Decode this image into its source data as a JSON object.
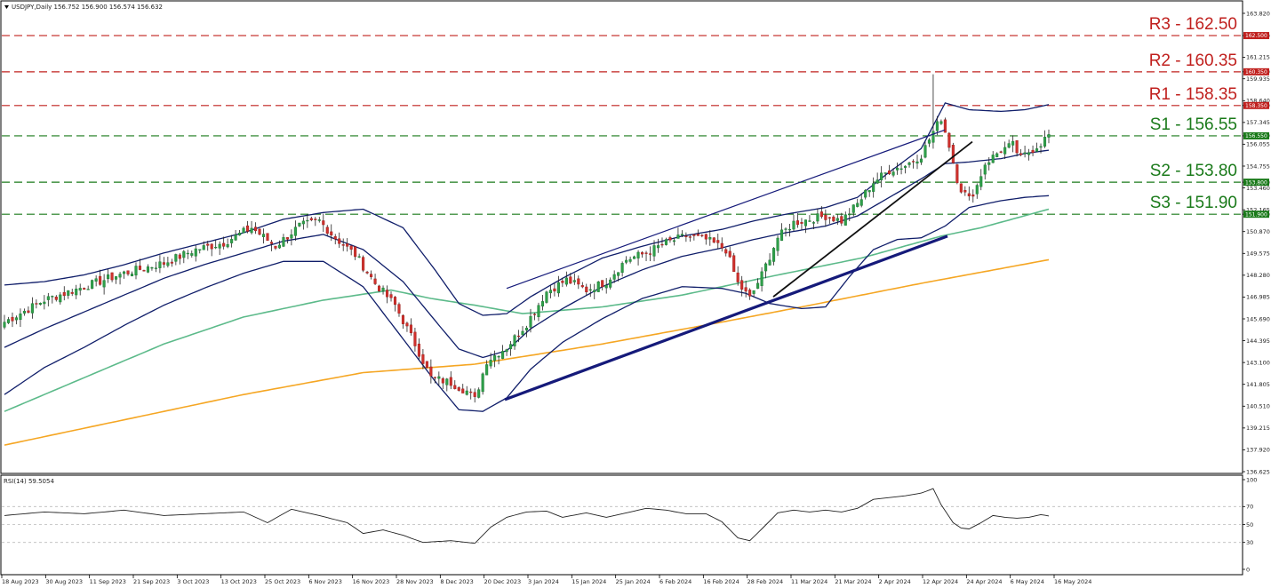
{
  "chart_data": {
    "type": "candlestick",
    "header": "USDJPY,Daily  156.752 156.900 156.574 156.632",
    "rsi_header": "RSI(14) 59.5054",
    "price_axis": {
      "range": [
        136.625,
        163.82
      ],
      "ticks": [
        "163.820",
        "162.500",
        "161.215",
        "160.350",
        "159.935",
        "158.640",
        "158.350",
        "157.345",
        "156.550",
        "156.055",
        "154.755",
        "153.800",
        "153.460",
        "152.165",
        "151.900",
        "150.870",
        "149.575",
        "148.280",
        "146.985",
        "145.690",
        "144.395",
        "143.100",
        "141.805",
        "140.510",
        "139.215",
        "137.920",
        "136.625"
      ]
    },
    "rsi_axis": {
      "range": [
        0,
        100
      ],
      "ticks": [
        "100",
        "70",
        "50",
        "30",
        "0"
      ]
    },
    "x_axis": {
      "labels": [
        "18 Aug 2023",
        "30 Aug 2023",
        "11 Sep 2023",
        "21 Sep 2023",
        "3 Oct 2023",
        "13 Oct 2023",
        "25 Oct 2023",
        "6 Nov 2023",
        "16 Nov 2023",
        "28 Nov 2023",
        "8 Dec 2023",
        "20 Dec 2023",
        "3 Jan 2024",
        "15 Jan 2024",
        "25 Jan 2024",
        "6 Feb 2024",
        "16 Feb 2024",
        "28 Feb 2024",
        "11 Mar 2024",
        "21 Mar 2024",
        "2 Apr 2024",
        "12 Apr 2024",
        "24 Apr 2024",
        "6 May 2024",
        "16 May 2024"
      ]
    },
    "levels": [
      {
        "name": "R3 - 162.50",
        "value": 162.5,
        "tag": "162.500",
        "color": "#c0201e"
      },
      {
        "name": "R2 - 160.35",
        "value": 160.35,
        "tag": "160.350",
        "color": "#c0201e"
      },
      {
        "name": "R1 - 158.35",
        "value": 158.35,
        "tag": "158.350",
        "color": "#c0201e"
      },
      {
        "name": "S1 - 156.55",
        "value": 156.55,
        "tag": "156.550",
        "color": "#1a7a1a"
      },
      {
        "name": "S2 - 153.80",
        "value": 153.8,
        "tag": "153.800",
        "color": "#1a7a1a"
      },
      {
        "name": "S3 - 151.90",
        "value": 151.9,
        "tag": "151.900",
        "color": "#1a7a1a"
      }
    ],
    "close_anchors": [
      [
        0,
        145.5
      ],
      [
        10,
        146.8
      ],
      [
        20,
        147.6
      ],
      [
        30,
        148.4
      ],
      [
        40,
        149.0
      ],
      [
        48,
        149.8
      ],
      [
        55,
        150.2
      ],
      [
        62,
        151.1
      ],
      [
        68,
        150.0
      ],
      [
        74,
        151.2
      ],
      [
        79,
        151.5
      ],
      [
        83,
        150.5
      ],
      [
        88,
        149.5
      ],
      [
        93,
        147.8
      ],
      [
        98,
        146.5
      ],
      [
        103,
        144.2
      ],
      [
        107,
        142.2
      ],
      [
        112,
        141.9
      ],
      [
        116,
        141.4
      ],
      [
        118,
        140.9
      ],
      [
        121,
        143.2
      ],
      [
        126,
        144.0
      ],
      [
        131,
        145.4
      ],
      [
        136,
        147.3
      ],
      [
        141,
        148.0
      ],
      [
        146,
        147.4
      ],
      [
        151,
        147.9
      ],
      [
        156,
        149.2
      ],
      [
        161,
        149.6
      ],
      [
        166,
        150.2
      ],
      [
        171,
        150.6
      ],
      [
        176,
        150.4
      ],
      [
        181,
        149.8
      ],
      [
        184,
        147.8
      ],
      [
        187,
        146.9
      ],
      [
        190,
        148.3
      ],
      [
        194,
        150.5
      ],
      [
        198,
        151.4
      ],
      [
        202,
        151.6
      ],
      [
        206,
        151.8
      ],
      [
        210,
        151.5
      ],
      [
        214,
        152.5
      ],
      [
        218,
        153.8
      ],
      [
        222,
        154.5
      ],
      [
        226,
        154.8
      ],
      [
        230,
        155.4
      ],
      [
        233,
        156.8
      ],
      [
        235,
        157.6
      ],
      [
        237,
        156.0
      ],
      [
        239,
        154.0
      ],
      [
        240,
        153.4
      ],
      [
        242,
        152.8
      ],
      [
        244,
        153.6
      ],
      [
        246,
        154.9
      ],
      [
        250,
        155.7
      ],
      [
        253,
        156.0
      ],
      [
        255,
        155.2
      ],
      [
        257,
        155.6
      ],
      [
        260,
        156.1
      ],
      [
        262,
        156.63
      ]
    ],
    "sma_100_anchors": [
      [
        0,
        140.2
      ],
      [
        20,
        142.2
      ],
      [
        40,
        144.2
      ],
      [
        60,
        145.8
      ],
      [
        80,
        146.8
      ],
      [
        97,
        147.4
      ],
      [
        107,
        146.9
      ],
      [
        118,
        146.5
      ],
      [
        130,
        146.0
      ],
      [
        150,
        146.4
      ],
      [
        170,
        147.1
      ],
      [
        190,
        148.1
      ],
      [
        215,
        149.3
      ],
      [
        235,
        150.6
      ],
      [
        245,
        151.1
      ],
      [
        262,
        152.2
      ]
    ],
    "sma_200_anchors": [
      [
        0,
        138.2
      ],
      [
        30,
        139.7
      ],
      [
        60,
        141.2
      ],
      [
        90,
        142.5
      ],
      [
        118,
        143.0
      ],
      [
        150,
        144.2
      ],
      [
        180,
        145.5
      ],
      [
        200,
        146.4
      ],
      [
        230,
        147.8
      ],
      [
        262,
        149.2
      ]
    ],
    "bb_upper_anchors": [
      [
        0,
        147.7
      ],
      [
        10,
        147.9
      ],
      [
        20,
        148.3
      ],
      [
        30,
        148.9
      ],
      [
        40,
        149.6
      ],
      [
        50,
        150.2
      ],
      [
        60,
        150.8
      ],
      [
        70,
        151.6
      ],
      [
        80,
        152.0
      ],
      [
        90,
        152.2
      ],
      [
        100,
        151.1
      ],
      [
        108,
        148.6
      ],
      [
        114,
        146.6
      ],
      [
        120,
        145.9
      ],
      [
        126,
        146.0
      ],
      [
        132,
        147.0
      ],
      [
        140,
        148.1
      ],
      [
        150,
        149.3
      ],
      [
        160,
        150.0
      ],
      [
        170,
        150.6
      ],
      [
        180,
        151.0
      ],
      [
        188,
        151.5
      ],
      [
        196,
        151.9
      ],
      [
        206,
        152.3
      ],
      [
        214,
        152.9
      ],
      [
        222,
        154.4
      ],
      [
        230,
        155.8
      ],
      [
        236,
        158.5
      ],
      [
        242,
        158.1
      ],
      [
        250,
        158.0
      ],
      [
        256,
        158.1
      ],
      [
        262,
        158.4
      ]
    ],
    "bb_middle_anchors": [
      [
        0,
        144.0
      ],
      [
        10,
        145.1
      ],
      [
        20,
        146.1
      ],
      [
        30,
        147.1
      ],
      [
        40,
        148.1
      ],
      [
        50,
        148.9
      ],
      [
        60,
        149.6
      ],
      [
        70,
        150.3
      ],
      [
        80,
        150.7
      ],
      [
        90,
        149.8
      ],
      [
        100,
        147.9
      ],
      [
        108,
        145.6
      ],
      [
        114,
        143.9
      ],
      [
        120,
        143.4
      ],
      [
        126,
        143.8
      ],
      [
        132,
        145.1
      ],
      [
        140,
        146.3
      ],
      [
        150,
        147.6
      ],
      [
        160,
        148.6
      ],
      [
        170,
        149.4
      ],
      [
        180,
        149.9
      ],
      [
        188,
        150.4
      ],
      [
        196,
        150.8
      ],
      [
        206,
        151.2
      ],
      [
        214,
        151.8
      ],
      [
        222,
        152.9
      ],
      [
        230,
        154.0
      ],
      [
        236,
        154.9
      ],
      [
        242,
        155.0
      ],
      [
        250,
        155.2
      ],
      [
        256,
        155.5
      ],
      [
        262,
        155.7
      ]
    ],
    "bb_lower_anchors": [
      [
        0,
        141.2
      ],
      [
        10,
        142.8
      ],
      [
        20,
        144.0
      ],
      [
        30,
        145.3
      ],
      [
        40,
        146.5
      ],
      [
        50,
        147.5
      ],
      [
        60,
        148.4
      ],
      [
        70,
        149.1
      ],
      [
        80,
        149.1
      ],
      [
        90,
        147.6
      ],
      [
        100,
        144.5
      ],
      [
        108,
        142.0
      ],
      [
        114,
        140.3
      ],
      [
        120,
        140.2
      ],
      [
        126,
        141.0
      ],
      [
        132,
        142.7
      ],
      [
        140,
        144.3
      ],
      [
        150,
        145.7
      ],
      [
        160,
        146.9
      ],
      [
        170,
        147.6
      ],
      [
        180,
        147.5
      ],
      [
        186,
        147.2
      ],
      [
        192,
        146.6
      ],
      [
        200,
        146.3
      ],
      [
        206,
        146.4
      ],
      [
        212,
        148.2
      ],
      [
        218,
        149.8
      ],
      [
        224,
        150.4
      ],
      [
        230,
        150.5
      ],
      [
        236,
        151.2
      ],
      [
        242,
        152.3
      ],
      [
        250,
        152.7
      ],
      [
        256,
        152.9
      ],
      [
        262,
        153.0
      ]
    ],
    "rsi_anchors": [
      [
        0,
        60
      ],
      [
        10,
        64
      ],
      [
        20,
        62
      ],
      [
        30,
        66
      ],
      [
        40,
        60
      ],
      [
        50,
        62
      ],
      [
        60,
        64
      ],
      [
        66,
        52
      ],
      [
        72,
        67
      ],
      [
        79,
        60
      ],
      [
        86,
        52
      ],
      [
        90,
        40
      ],
      [
        95,
        44
      ],
      [
        100,
        38
      ],
      [
        105,
        30
      ],
      [
        112,
        32
      ],
      [
        116,
        30
      ],
      [
        118,
        29
      ],
      [
        122,
        47
      ],
      [
        126,
        58
      ],
      [
        131,
        64
      ],
      [
        136,
        65
      ],
      [
        140,
        58
      ],
      [
        146,
        63
      ],
      [
        151,
        58
      ],
      [
        156,
        63
      ],
      [
        161,
        68
      ],
      [
        166,
        66
      ],
      [
        171,
        62
      ],
      [
        176,
        62
      ],
      [
        180,
        53
      ],
      [
        184,
        35
      ],
      [
        187,
        32
      ],
      [
        190,
        45
      ],
      [
        194,
        63
      ],
      [
        198,
        66
      ],
      [
        202,
        64
      ],
      [
        206,
        66
      ],
      [
        210,
        64
      ],
      [
        214,
        68
      ],
      [
        218,
        78
      ],
      [
        222,
        80
      ],
      [
        226,
        82
      ],
      [
        230,
        85
      ],
      [
        233,
        90
      ],
      [
        235,
        72
      ],
      [
        238,
        52
      ],
      [
        240,
        46
      ],
      [
        242,
        45
      ],
      [
        245,
        52
      ],
      [
        248,
        60
      ],
      [
        251,
        58
      ],
      [
        254,
        57
      ],
      [
        257,
        58
      ],
      [
        260,
        61
      ],
      [
        262,
        59.5
      ]
    ]
  }
}
